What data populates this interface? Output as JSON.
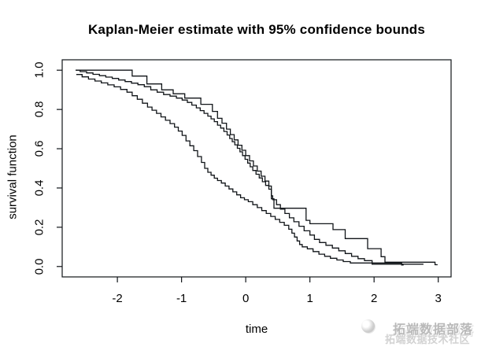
{
  "title": "Kaplan-Meier estimate with 95% confidence bounds",
  "watermark": {
    "line1": "拓端数据部落",
    "line2": "拓端数据技术社区"
  },
  "chart_data": {
    "type": "line",
    "subtype": "kaplan-meier-step",
    "title": "Kaplan-Meier estimate with 95% confidence bounds",
    "xlabel": "time",
    "ylabel": "survival function",
    "xlim": [
      -2.86,
      3.2
    ],
    "ylim": [
      -0.053,
      1.053
    ],
    "xticks": [
      -2,
      -1,
      0,
      1,
      2,
      3
    ],
    "ytick_labels": [
      "0.0",
      "0.2",
      "0.4",
      "0.6",
      "0.8",
      "1.0"
    ],
    "ytick_values": [
      0.0,
      0.2,
      0.4,
      0.6,
      0.8,
      1.0
    ],
    "grid": false,
    "legend": "none",
    "line_color": "#101418",
    "series": [
      {
        "name": "KM estimate",
        "points": [
          [
            -2.65,
            1.0
          ],
          [
            -2.58,
            0.993
          ],
          [
            -2.48,
            0.986
          ],
          [
            -2.38,
            0.979
          ],
          [
            -2.28,
            0.972
          ],
          [
            -2.18,
            0.965
          ],
          [
            -2.08,
            0.958
          ],
          [
            -1.98,
            0.95
          ],
          [
            -1.88,
            0.942
          ],
          [
            -1.78,
            0.934
          ],
          [
            -1.68,
            0.926
          ],
          [
            -1.58,
            0.916
          ],
          [
            -1.48,
            0.9
          ],
          [
            -1.38,
            0.888
          ],
          [
            -1.28,
            0.876
          ],
          [
            -1.18,
            0.868
          ],
          [
            -1.08,
            0.858
          ],
          [
            -0.99,
            0.848
          ],
          [
            -0.91,
            0.836
          ],
          [
            -0.84,
            0.822
          ],
          [
            -0.77,
            0.808
          ],
          [
            -0.71,
            0.794
          ],
          [
            -0.65,
            0.78
          ],
          [
            -0.59,
            0.766
          ],
          [
            -0.54,
            0.752
          ],
          [
            -0.49,
            0.738
          ],
          [
            -0.44,
            0.72
          ],
          [
            -0.39,
            0.705
          ],
          [
            -0.34,
            0.688
          ],
          [
            -0.29,
            0.67
          ],
          [
            -0.25,
            0.652
          ],
          [
            -0.21,
            0.636
          ],
          [
            -0.17,
            0.62
          ],
          [
            -0.13,
            0.602
          ],
          [
            -0.09,
            0.584
          ],
          [
            -0.05,
            0.565
          ],
          [
            -0.01,
            0.546
          ],
          [
            0.03,
            0.527
          ],
          [
            0.07,
            0.508
          ],
          [
            0.11,
            0.489
          ],
          [
            0.16,
            0.47
          ],
          [
            0.21,
            0.451
          ],
          [
            0.26,
            0.432
          ],
          [
            0.31,
            0.413
          ],
          [
            0.36,
            0.394
          ],
          [
            0.4,
            0.36
          ],
          [
            0.42,
            0.34
          ],
          [
            0.48,
            0.315
          ],
          [
            0.54,
            0.292
          ],
          [
            0.61,
            0.27
          ],
          [
            0.68,
            0.248
          ],
          [
            0.75,
            0.228
          ],
          [
            0.83,
            0.205
          ],
          [
            0.91,
            0.182
          ],
          [
            1.0,
            0.16
          ],
          [
            1.07,
            0.138
          ],
          [
            1.15,
            0.122
          ],
          [
            1.25,
            0.108
          ],
          [
            1.35,
            0.094
          ],
          [
            1.45,
            0.08
          ],
          [
            1.55,
            0.066
          ],
          [
            1.65,
            0.052
          ],
          [
            1.75,
            0.04
          ],
          [
            1.85,
            0.03
          ],
          [
            1.97,
            0.012
          ],
          [
            2.77,
            0.012
          ]
        ]
      },
      {
        "name": "upper 95% confidence bound",
        "points": [
          [
            -2.65,
            1.0
          ],
          [
            -1.77,
            0.97
          ],
          [
            -1.54,
            0.93
          ],
          [
            -1.31,
            0.9
          ],
          [
            -1.13,
            0.88
          ],
          [
            -0.95,
            0.858
          ],
          [
            -0.7,
            0.826
          ],
          [
            -0.52,
            0.79
          ],
          [
            -0.44,
            0.755
          ],
          [
            -0.37,
            0.73
          ],
          [
            -0.3,
            0.7
          ],
          [
            -0.24,
            0.672
          ],
          [
            -0.18,
            0.645
          ],
          [
            -0.12,
            0.618
          ],
          [
            -0.06,
            0.592
          ],
          [
            0.0,
            0.565
          ],
          [
            0.06,
            0.538
          ],
          [
            0.12,
            0.512
          ],
          [
            0.18,
            0.486
          ],
          [
            0.24,
            0.46
          ],
          [
            0.3,
            0.435
          ],
          [
            0.36,
            0.41
          ],
          [
            0.4,
            0.345
          ],
          [
            0.44,
            0.297
          ],
          [
            0.94,
            0.235
          ],
          [
            1.0,
            0.218
          ],
          [
            1.36,
            0.188
          ],
          [
            1.55,
            0.142
          ],
          [
            1.9,
            0.091
          ],
          [
            2.11,
            0.05
          ],
          [
            2.17,
            0.022
          ],
          [
            2.95,
            0.009
          ],
          [
            2.99,
            0.009
          ]
        ]
      },
      {
        "name": "lower 95% confidence bound",
        "points": [
          [
            -2.64,
            0.978
          ],
          [
            -2.55,
            0.966
          ],
          [
            -2.45,
            0.955
          ],
          [
            -2.35,
            0.945
          ],
          [
            -2.25,
            0.935
          ],
          [
            -2.15,
            0.925
          ],
          [
            -2.05,
            0.915
          ],
          [
            -1.95,
            0.902
          ],
          [
            -1.85,
            0.888
          ],
          [
            -1.77,
            0.87
          ],
          [
            -1.69,
            0.852
          ],
          [
            -1.61,
            0.832
          ],
          [
            -1.53,
            0.812
          ],
          [
            -1.46,
            0.796
          ],
          [
            -1.39,
            0.78
          ],
          [
            -1.32,
            0.762
          ],
          [
            -1.25,
            0.745
          ],
          [
            -1.18,
            0.728
          ],
          [
            -1.11,
            0.71
          ],
          [
            -1.05,
            0.69
          ],
          [
            -0.99,
            0.668
          ],
          [
            -0.93,
            0.64
          ],
          [
            -0.87,
            0.615
          ],
          [
            -0.81,
            0.59
          ],
          [
            -0.75,
            0.56
          ],
          [
            -0.69,
            0.53
          ],
          [
            -0.64,
            0.5
          ],
          [
            -0.59,
            0.48
          ],
          [
            -0.54,
            0.465
          ],
          [
            -0.49,
            0.45
          ],
          [
            -0.44,
            0.438
          ],
          [
            -0.38,
            0.425
          ],
          [
            -0.32,
            0.41
          ],
          [
            -0.26,
            0.395
          ],
          [
            -0.2,
            0.38
          ],
          [
            -0.14,
            0.365
          ],
          [
            -0.08,
            0.35
          ],
          [
            -0.02,
            0.34
          ],
          [
            0.04,
            0.33
          ],
          [
            0.11,
            0.315
          ],
          [
            0.18,
            0.3
          ],
          [
            0.25,
            0.285
          ],
          [
            0.32,
            0.27
          ],
          [
            0.39,
            0.255
          ],
          [
            0.46,
            0.24
          ],
          [
            0.53,
            0.225
          ],
          [
            0.6,
            0.21
          ],
          [
            0.67,
            0.19
          ],
          [
            0.72,
            0.17
          ],
          [
            0.76,
            0.15
          ],
          [
            0.8,
            0.13
          ],
          [
            0.84,
            0.112
          ],
          [
            0.88,
            0.1
          ],
          [
            0.96,
            0.09
          ],
          [
            1.05,
            0.076
          ],
          [
            1.14,
            0.063
          ],
          [
            1.23,
            0.052
          ],
          [
            1.32,
            0.042
          ],
          [
            1.42,
            0.033
          ],
          [
            1.52,
            0.025
          ],
          [
            1.63,
            0.018
          ],
          [
            2.43,
            0.008
          ],
          [
            2.46,
            0.008
          ]
        ]
      }
    ]
  }
}
